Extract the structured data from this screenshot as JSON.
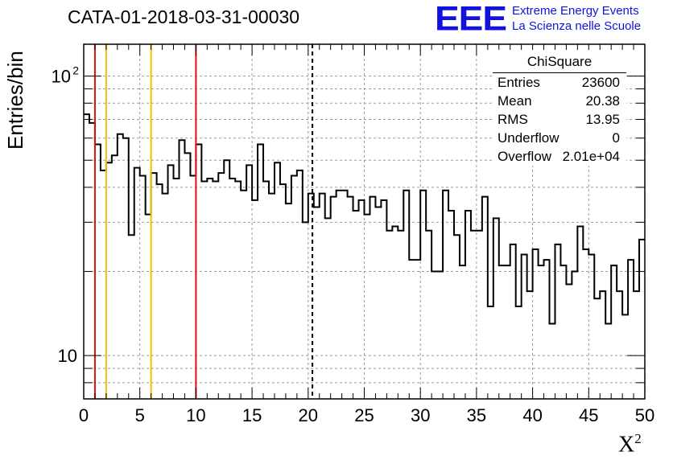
{
  "chart_data": {
    "type": "histogram",
    "title": "CATA-01-2018-03-31-00030",
    "xlabel": "X",
    "xlabel_sup": "2",
    "ylabel": "Entries/bin",
    "xlim": [
      0,
      50
    ],
    "ylim": [
      7,
      130
    ],
    "yscale": "log",
    "grid": true,
    "bin_width": 0.5,
    "values": [
      73,
      68,
      57,
      46,
      49,
      52,
      62,
      60,
      27,
      47,
      44,
      32,
      45,
      41,
      38,
      48,
      43,
      59,
      53,
      44,
      57,
      42,
      43,
      42,
      45,
      50,
      43,
      42,
      39,
      48,
      36,
      57,
      42,
      38,
      49,
      41,
      35,
      44,
      46,
      30,
      38,
      34,
      38,
      31,
      37,
      39,
      39,
      37,
      33,
      36,
      32,
      37,
      34,
      36,
      28,
      29,
      28,
      39,
      22,
      22,
      39,
      28,
      20,
      20,
      39,
      33,
      27,
      21,
      33,
      28,
      28,
      37,
      15,
      31,
      21,
      21,
      25,
      15,
      23,
      17,
      24,
      21,
      22,
      13,
      25,
      21,
      18,
      20,
      29,
      24,
      23,
      16,
      17,
      13,
      21,
      17,
      14,
      22,
      17,
      26
    ],
    "vertical_lines": [
      {
        "x": 1,
        "color": "#e01010",
        "style": "solid"
      },
      {
        "x": 2,
        "color": "#f0c000",
        "style": "solid"
      },
      {
        "x": 6,
        "color": "#f0c000",
        "style": "solid"
      },
      {
        "x": 10,
        "color": "#e01010",
        "style": "solid"
      },
      {
        "x": 20.38,
        "color": "#000000",
        "style": "dashed"
      }
    ],
    "x_ticks": [
      0,
      5,
      10,
      15,
      20,
      25,
      30,
      35,
      40,
      45,
      50
    ],
    "x_tick_labels": [
      "0",
      "5",
      "10",
      "15",
      "20",
      "25",
      "30",
      "35",
      "40",
      "45",
      "50"
    ],
    "y_ticks": [
      10,
      100
    ],
    "y_tick_labels": [
      "10",
      "10",
      "2"
    ],
    "legend_placement": "top-right"
  },
  "stats_box": {
    "title": "ChiSquare",
    "rows": [
      {
        "key": "Entries",
        "value": "23600"
      },
      {
        "key": "Mean",
        "value": "20.38"
      },
      {
        "key": "RMS",
        "value": "13.95"
      },
      {
        "key": "Underflow",
        "value": "0"
      },
      {
        "key": "Overflow",
        "value": "2.01e+04"
      }
    ]
  },
  "logo": {
    "mark": "EEE",
    "line1": "Extreme Energy Events",
    "line2": "La Scienza nelle Scuole"
  }
}
